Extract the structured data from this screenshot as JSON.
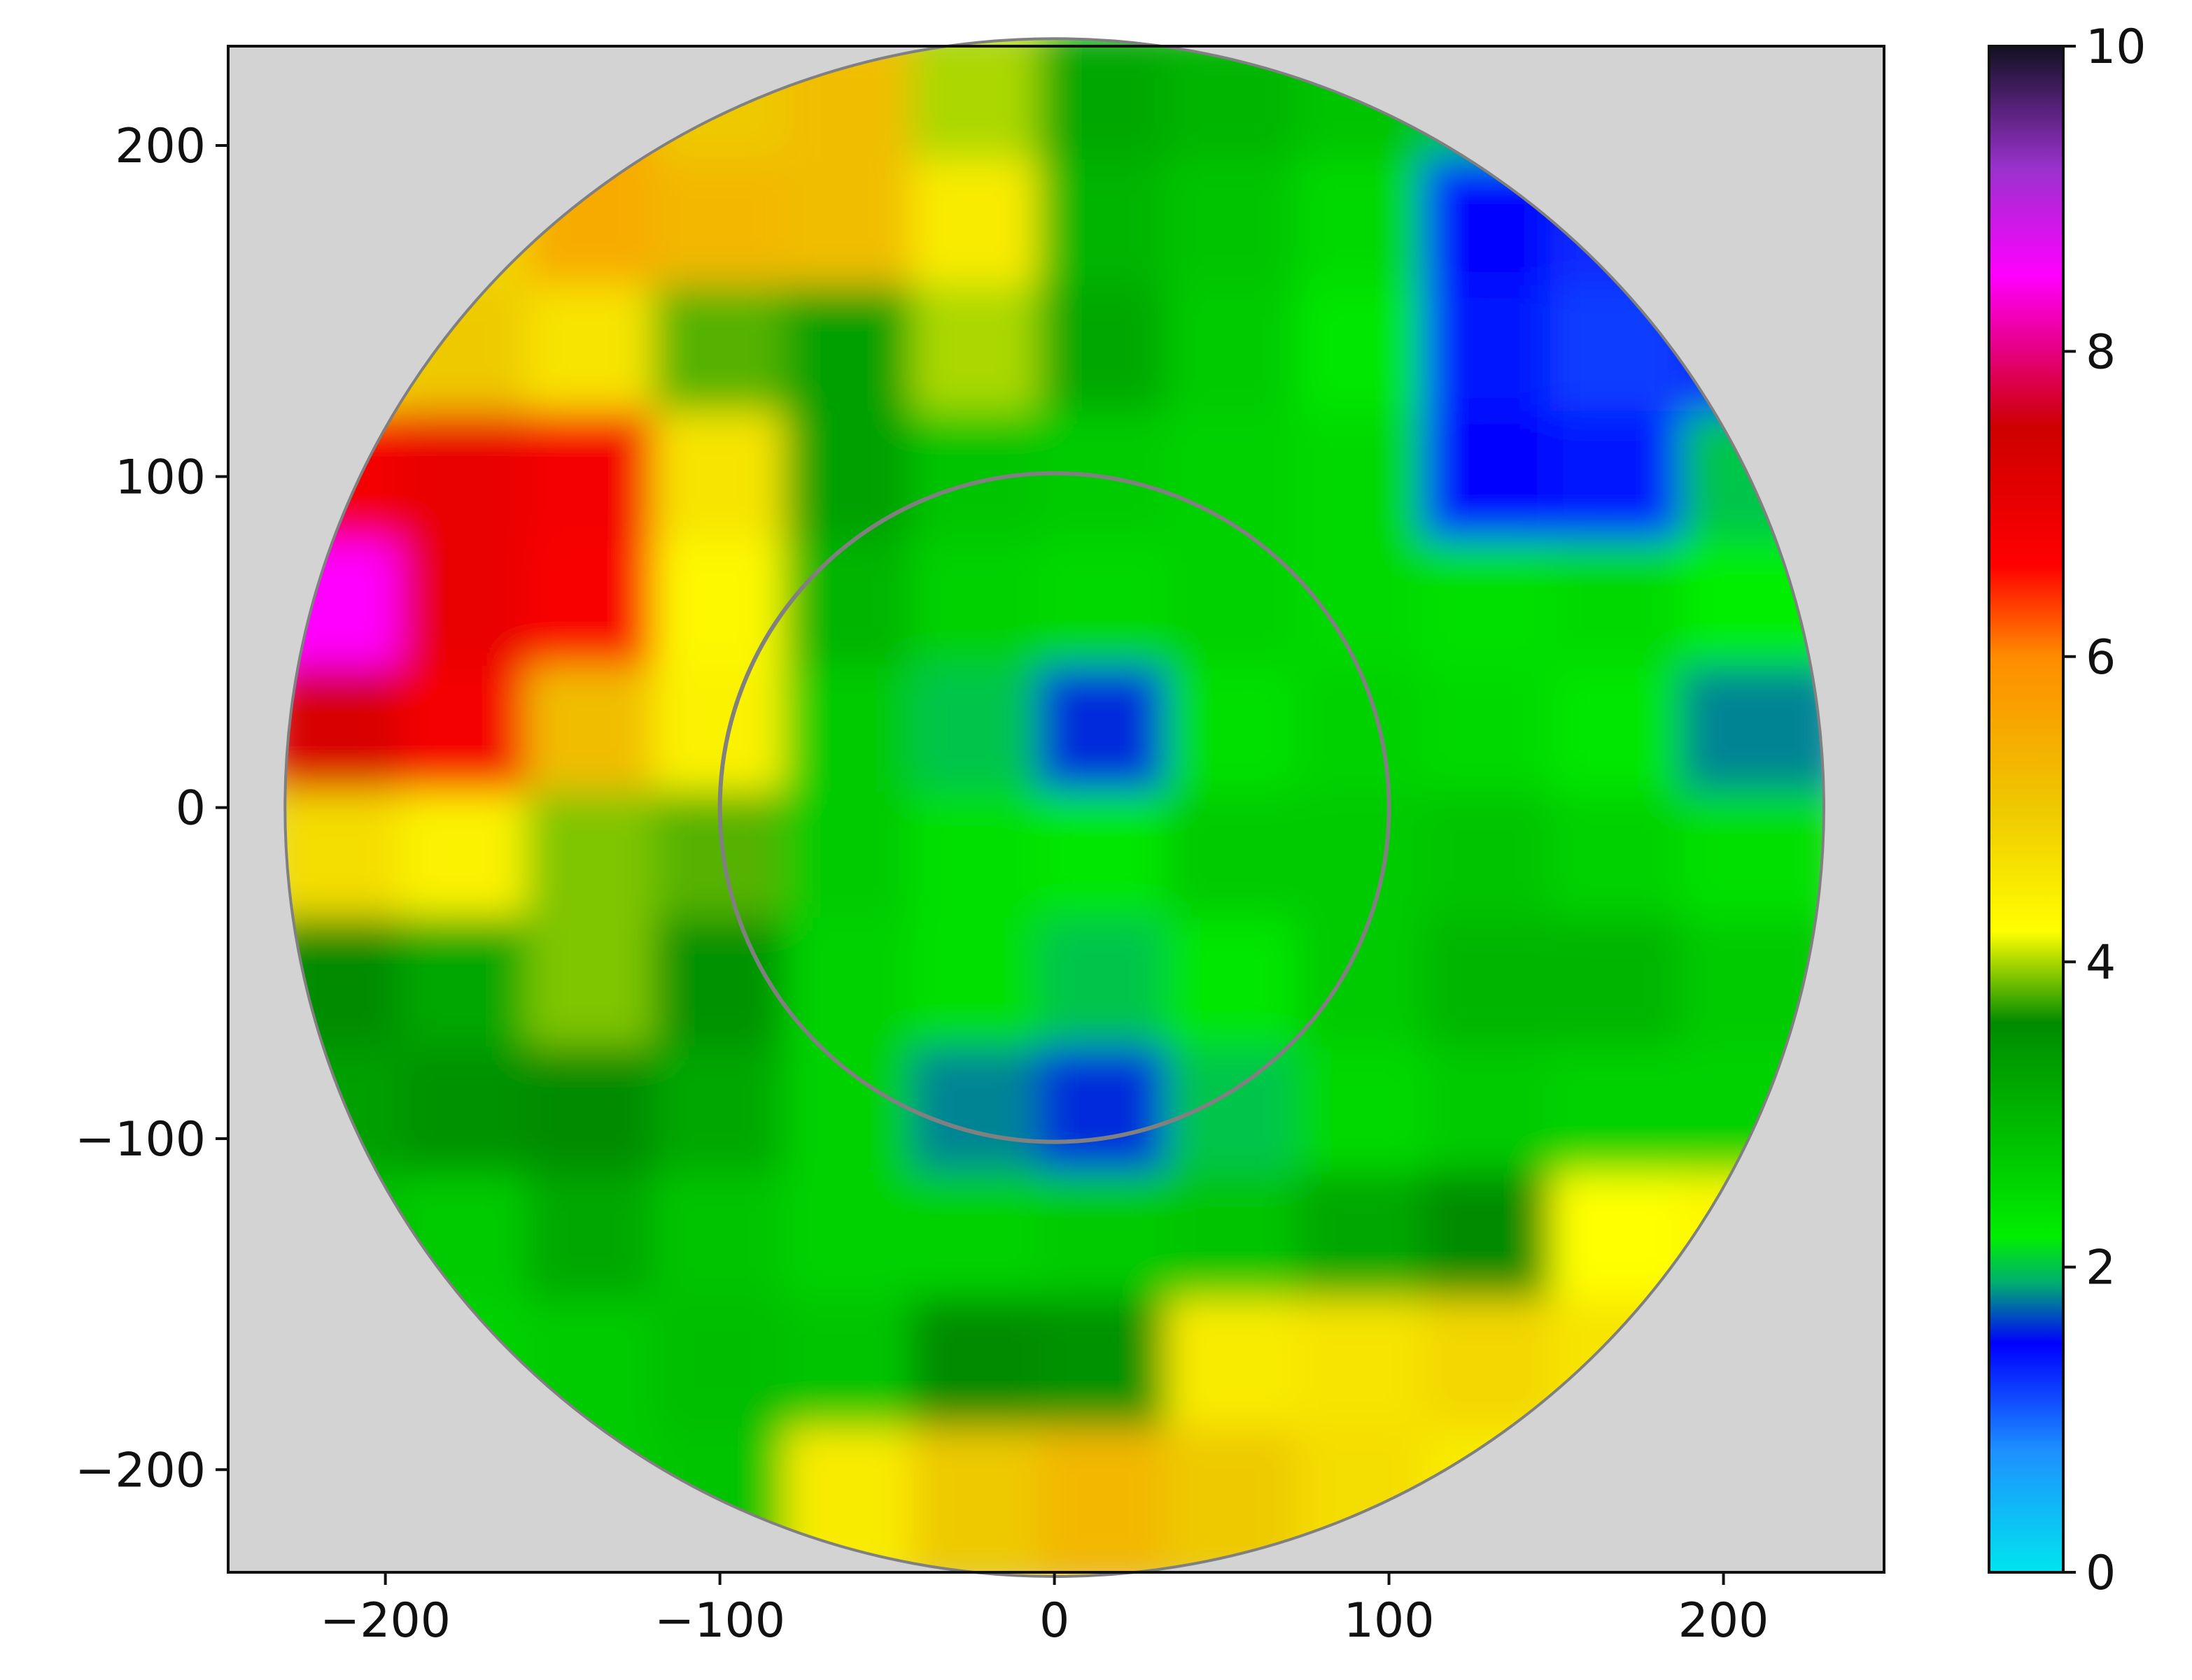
{
  "chart_data": {
    "type": "heatmap",
    "x_centers": [
      -211,
      -172,
      -134,
      -96,
      -57,
      -19,
      19,
      57,
      96,
      134,
      172,
      211
    ],
    "y_centers": [
      211,
      172,
      134,
      96,
      57,
      19,
      -19,
      -57,
      -96,
      -134,
      -172,
      -211
    ],
    "values": [
      [
        null,
        null,
        5.5,
        5,
        5.2,
        4,
        3.2,
        3,
        2.8,
        2,
        null,
        null
      ],
      [
        null,
        4.8,
        5.5,
        5.3,
        5.2,
        4.5,
        3,
        2.8,
        2.5,
        1.5,
        1.3,
        null
      ],
      [
        4.8,
        5,
        4.6,
        3.8,
        3.3,
        4,
        3.2,
        2.7,
        2.3,
        1.4,
        1.2,
        1.3
      ],
      [
        6.8,
        7,
        6.8,
        4.6,
        3.3,
        2.8,
        2.7,
        2.6,
        2.5,
        1.5,
        1.4,
        2
      ],
      [
        8.5,
        7,
        6.7,
        4.3,
        3,
        2.6,
        2.5,
        2.6,
        2.5,
        2.4,
        2.5,
        2.2
      ],
      [
        7.3,
        6.8,
        5.2,
        4.4,
        2.7,
        2,
        1.6,
        2.4,
        2.6,
        2.5,
        2.3,
        1.8
      ],
      [
        4.7,
        4.4,
        3.9,
        3.8,
        2.7,
        2.4,
        2.3,
        2.7,
        2.7,
        2.8,
        2.6,
        2.4
      ],
      [
        3.6,
        3.2,
        3.9,
        3.5,
        2.6,
        2.4,
        2,
        2.3,
        2.7,
        3,
        3,
        2.7
      ],
      [
        3.3,
        3.5,
        3.6,
        3.2,
        2.6,
        1.8,
        1.6,
        2,
        2.5,
        2.7,
        2.6,
        2.6
      ],
      [
        2.9,
        2.7,
        3.2,
        2.8,
        2.6,
        2.6,
        2.7,
        2.8,
        3.2,
        3.6,
        4.2,
        4.3
      ],
      [
        null,
        2.6,
        2.7,
        2.9,
        2.8,
        3.6,
        3.5,
        4.5,
        4.6,
        4.8,
        4.6,
        null
      ],
      [
        null,
        null,
        2.7,
        2.8,
        4.5,
        5,
        5.3,
        5,
        4.7,
        4.5,
        null,
        null
      ]
    ],
    "xlim": [
      -247,
      248
    ],
    "ylim": [
      -231,
      230
    ],
    "xticks": [
      {
        "value": -200,
        "label": "−200"
      },
      {
        "value": -100,
        "label": "−100"
      },
      0,
      100,
      200
    ],
    "yticks": [
      {
        "value": -200,
        "label": "−200"
      },
      {
        "value": -100,
        "label": "−100"
      },
      0,
      100,
      200
    ],
    "clim": [
      0,
      10
    ],
    "colorbar_ticks": [
      0,
      2,
      4,
      6,
      8,
      10
    ],
    "colormap": [
      {
        "value": 0,
        "color": "#00e5ee"
      },
      {
        "value": 0.8,
        "color": "#1e90ff"
      },
      {
        "value": 1.5,
        "color": "#0000ff"
      },
      {
        "value": 1.9,
        "color": "#00b070"
      },
      {
        "value": 2.2,
        "color": "#00ee00"
      },
      {
        "value": 3.6,
        "color": "#008b00"
      },
      {
        "value": 4.2,
        "color": "#ffff00"
      },
      {
        "value": 5,
        "color": "#eec900"
      },
      {
        "value": 6,
        "color": "#ff8c00"
      },
      {
        "value": 6.6,
        "color": "#ff0000"
      },
      {
        "value": 7.5,
        "color": "#cd0000"
      },
      {
        "value": 8.5,
        "color": "#ff00ff"
      },
      {
        "value": 9.2,
        "color": "#9a32cd"
      },
      {
        "value": 10,
        "color": "#111122"
      }
    ],
    "background": "#d3d3d3",
    "ring_color": "#808080",
    "max_range": 230,
    "range_rings": [
      100
    ]
  }
}
